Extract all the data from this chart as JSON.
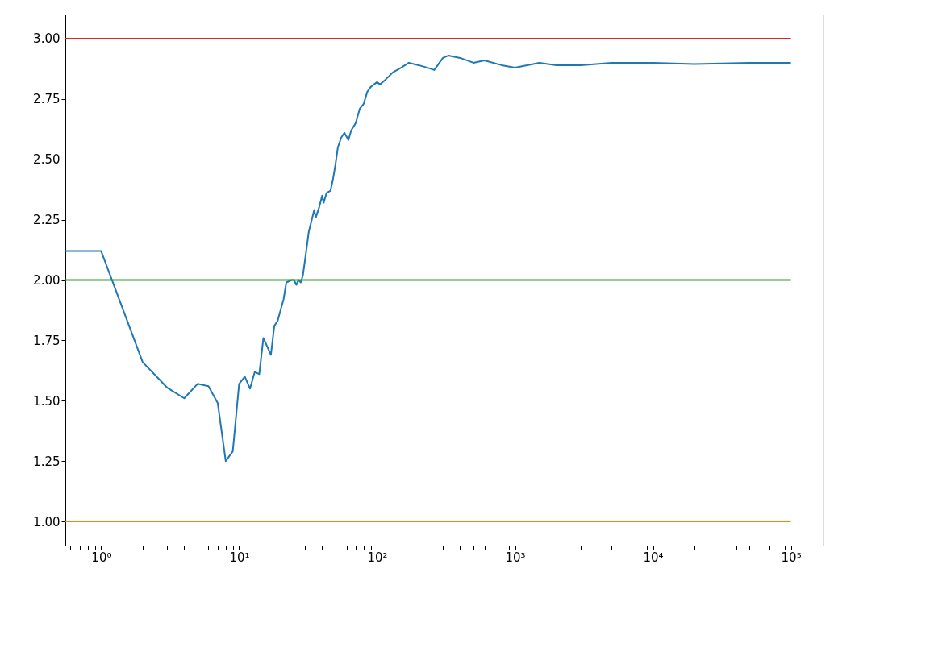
{
  "chart_data": {
    "type": "line",
    "xlim": [
      0.55,
      170000
    ],
    "ylim": [
      0.9,
      3.1
    ],
    "log": "x",
    "grid": false,
    "legend": false,
    "marker": "none",
    "line_style": "solid",
    "xticks": [
      {
        "value": 0.6,
        "label": null
      },
      {
        "value": 0.7,
        "label": null
      },
      {
        "value": 0.8,
        "label": null
      },
      {
        "value": 0.9,
        "label": null
      },
      {
        "value": 1,
        "label": "10⁰"
      },
      {
        "value": 2,
        "label": null
      },
      {
        "value": 3,
        "label": null
      },
      {
        "value": 4,
        "label": null
      },
      {
        "value": 5,
        "label": null
      },
      {
        "value": 6,
        "label": null
      },
      {
        "value": 7,
        "label": null
      },
      {
        "value": 8,
        "label": null
      },
      {
        "value": 9,
        "label": null
      },
      {
        "value": 10,
        "label": "10¹"
      },
      {
        "value": 20,
        "label": null
      },
      {
        "value": 30,
        "label": null
      },
      {
        "value": 40,
        "label": null
      },
      {
        "value": 50,
        "label": null
      },
      {
        "value": 60,
        "label": null
      },
      {
        "value": 70,
        "label": null
      },
      {
        "value": 80,
        "label": null
      },
      {
        "value": 90,
        "label": null
      },
      {
        "value": 100,
        "label": "10²"
      },
      {
        "value": 200,
        "label": null
      },
      {
        "value": 300,
        "label": null
      },
      {
        "value": 400,
        "label": null
      },
      {
        "value": 500,
        "label": null
      },
      {
        "value": 600,
        "label": null
      },
      {
        "value": 700,
        "label": null
      },
      {
        "value": 800,
        "label": null
      },
      {
        "value": 900,
        "label": null
      },
      {
        "value": 1000,
        "label": "10³"
      },
      {
        "value": 2000,
        "label": null
      },
      {
        "value": 3000,
        "label": null
      },
      {
        "value": 4000,
        "label": null
      },
      {
        "value": 5000,
        "label": null
      },
      {
        "value": 6000,
        "label": null
      },
      {
        "value": 7000,
        "label": null
      },
      {
        "value": 8000,
        "label": null
      },
      {
        "value": 9000,
        "label": null
      },
      {
        "value": 10000,
        "label": "10⁴"
      },
      {
        "value": 20000,
        "label": null
      },
      {
        "value": 30000,
        "label": null
      },
      {
        "value": 40000,
        "label": null
      },
      {
        "value": 50000,
        "label": null
      },
      {
        "value": 60000,
        "label": null
      },
      {
        "value": 70000,
        "label": null
      },
      {
        "value": 80000,
        "label": null
      },
      {
        "value": 90000,
        "label": null
      },
      {
        "value": 100000,
        "label": "10⁵"
      }
    ],
    "yticks": [
      {
        "value": 1,
        "label": "1.00"
      },
      {
        "value": 1.25,
        "label": "1.25"
      },
      {
        "value": 1.5,
        "label": "1.50"
      },
      {
        "value": 1.75,
        "label": "1.75"
      },
      {
        "value": 2,
        "label": "2.00"
      },
      {
        "value": 2.25,
        "label": "2.25"
      },
      {
        "value": 2.5,
        "label": "2.50"
      },
      {
        "value": 2.75,
        "label": "2.75"
      },
      {
        "value": 3,
        "label": "3.00"
      }
    ],
    "series": [
      {
        "color": "#1f77b4",
        "x": [
          0.55,
          1,
          2,
          3,
          4,
          5,
          6,
          7,
          8,
          9,
          10,
          11,
          12,
          13,
          14,
          15,
          17,
          18,
          19,
          21,
          22,
          24,
          25,
          26,
          27,
          28,
          29,
          30,
          32,
          33,
          35,
          36,
          38,
          40,
          41,
          43,
          46,
          48,
          50,
          52,
          55,
          58,
          62,
          65,
          70,
          75,
          80,
          85,
          90,
          100,
          105,
          115,
          130,
          150,
          170,
          200,
          230,
          260,
          300,
          330,
          400,
          500,
          600,
          800,
          1000,
          1500,
          2000,
          3000,
          5000,
          10000,
          20000,
          50000,
          100000
        ],
        "values": [
          2.12,
          2.12,
          1.66,
          1.555,
          1.51,
          1.57,
          1.56,
          1.49,
          1.25,
          1.29,
          1.57,
          1.6,
          1.55,
          1.62,
          1.61,
          1.76,
          1.69,
          1.81,
          1.83,
          1.92,
          1.99,
          2.0,
          2.0,
          1.98,
          2.0,
          1.99,
          2.02,
          2.08,
          2.2,
          2.23,
          2.29,
          2.26,
          2.3,
          2.35,
          2.32,
          2.36,
          2.37,
          2.42,
          2.48,
          2.55,
          2.59,
          2.61,
          2.58,
          2.62,
          2.65,
          2.71,
          2.73,
          2.78,
          2.8,
          2.82,
          2.81,
          2.83,
          2.86,
          2.88,
          2.9,
          2.89,
          2.88,
          2.87,
          2.92,
          2.93,
          2.92,
          2.9,
          2.91,
          2.89,
          2.88,
          2.9,
          2.89,
          2.89,
          2.9,
          2.9,
          2.895,
          2.9,
          2.9
        ]
      },
      {
        "color": "#ff7f0e",
        "x": [
          0.55,
          100000
        ],
        "values": [
          1,
          1
        ]
      },
      {
        "color": "#2ca02c",
        "x": [
          0.55,
          100000
        ],
        "values": [
          2,
          2
        ]
      },
      {
        "color": "#d62728",
        "x": [
          0.55,
          100000
        ],
        "values": [
          3,
          3
        ]
      }
    ]
  }
}
